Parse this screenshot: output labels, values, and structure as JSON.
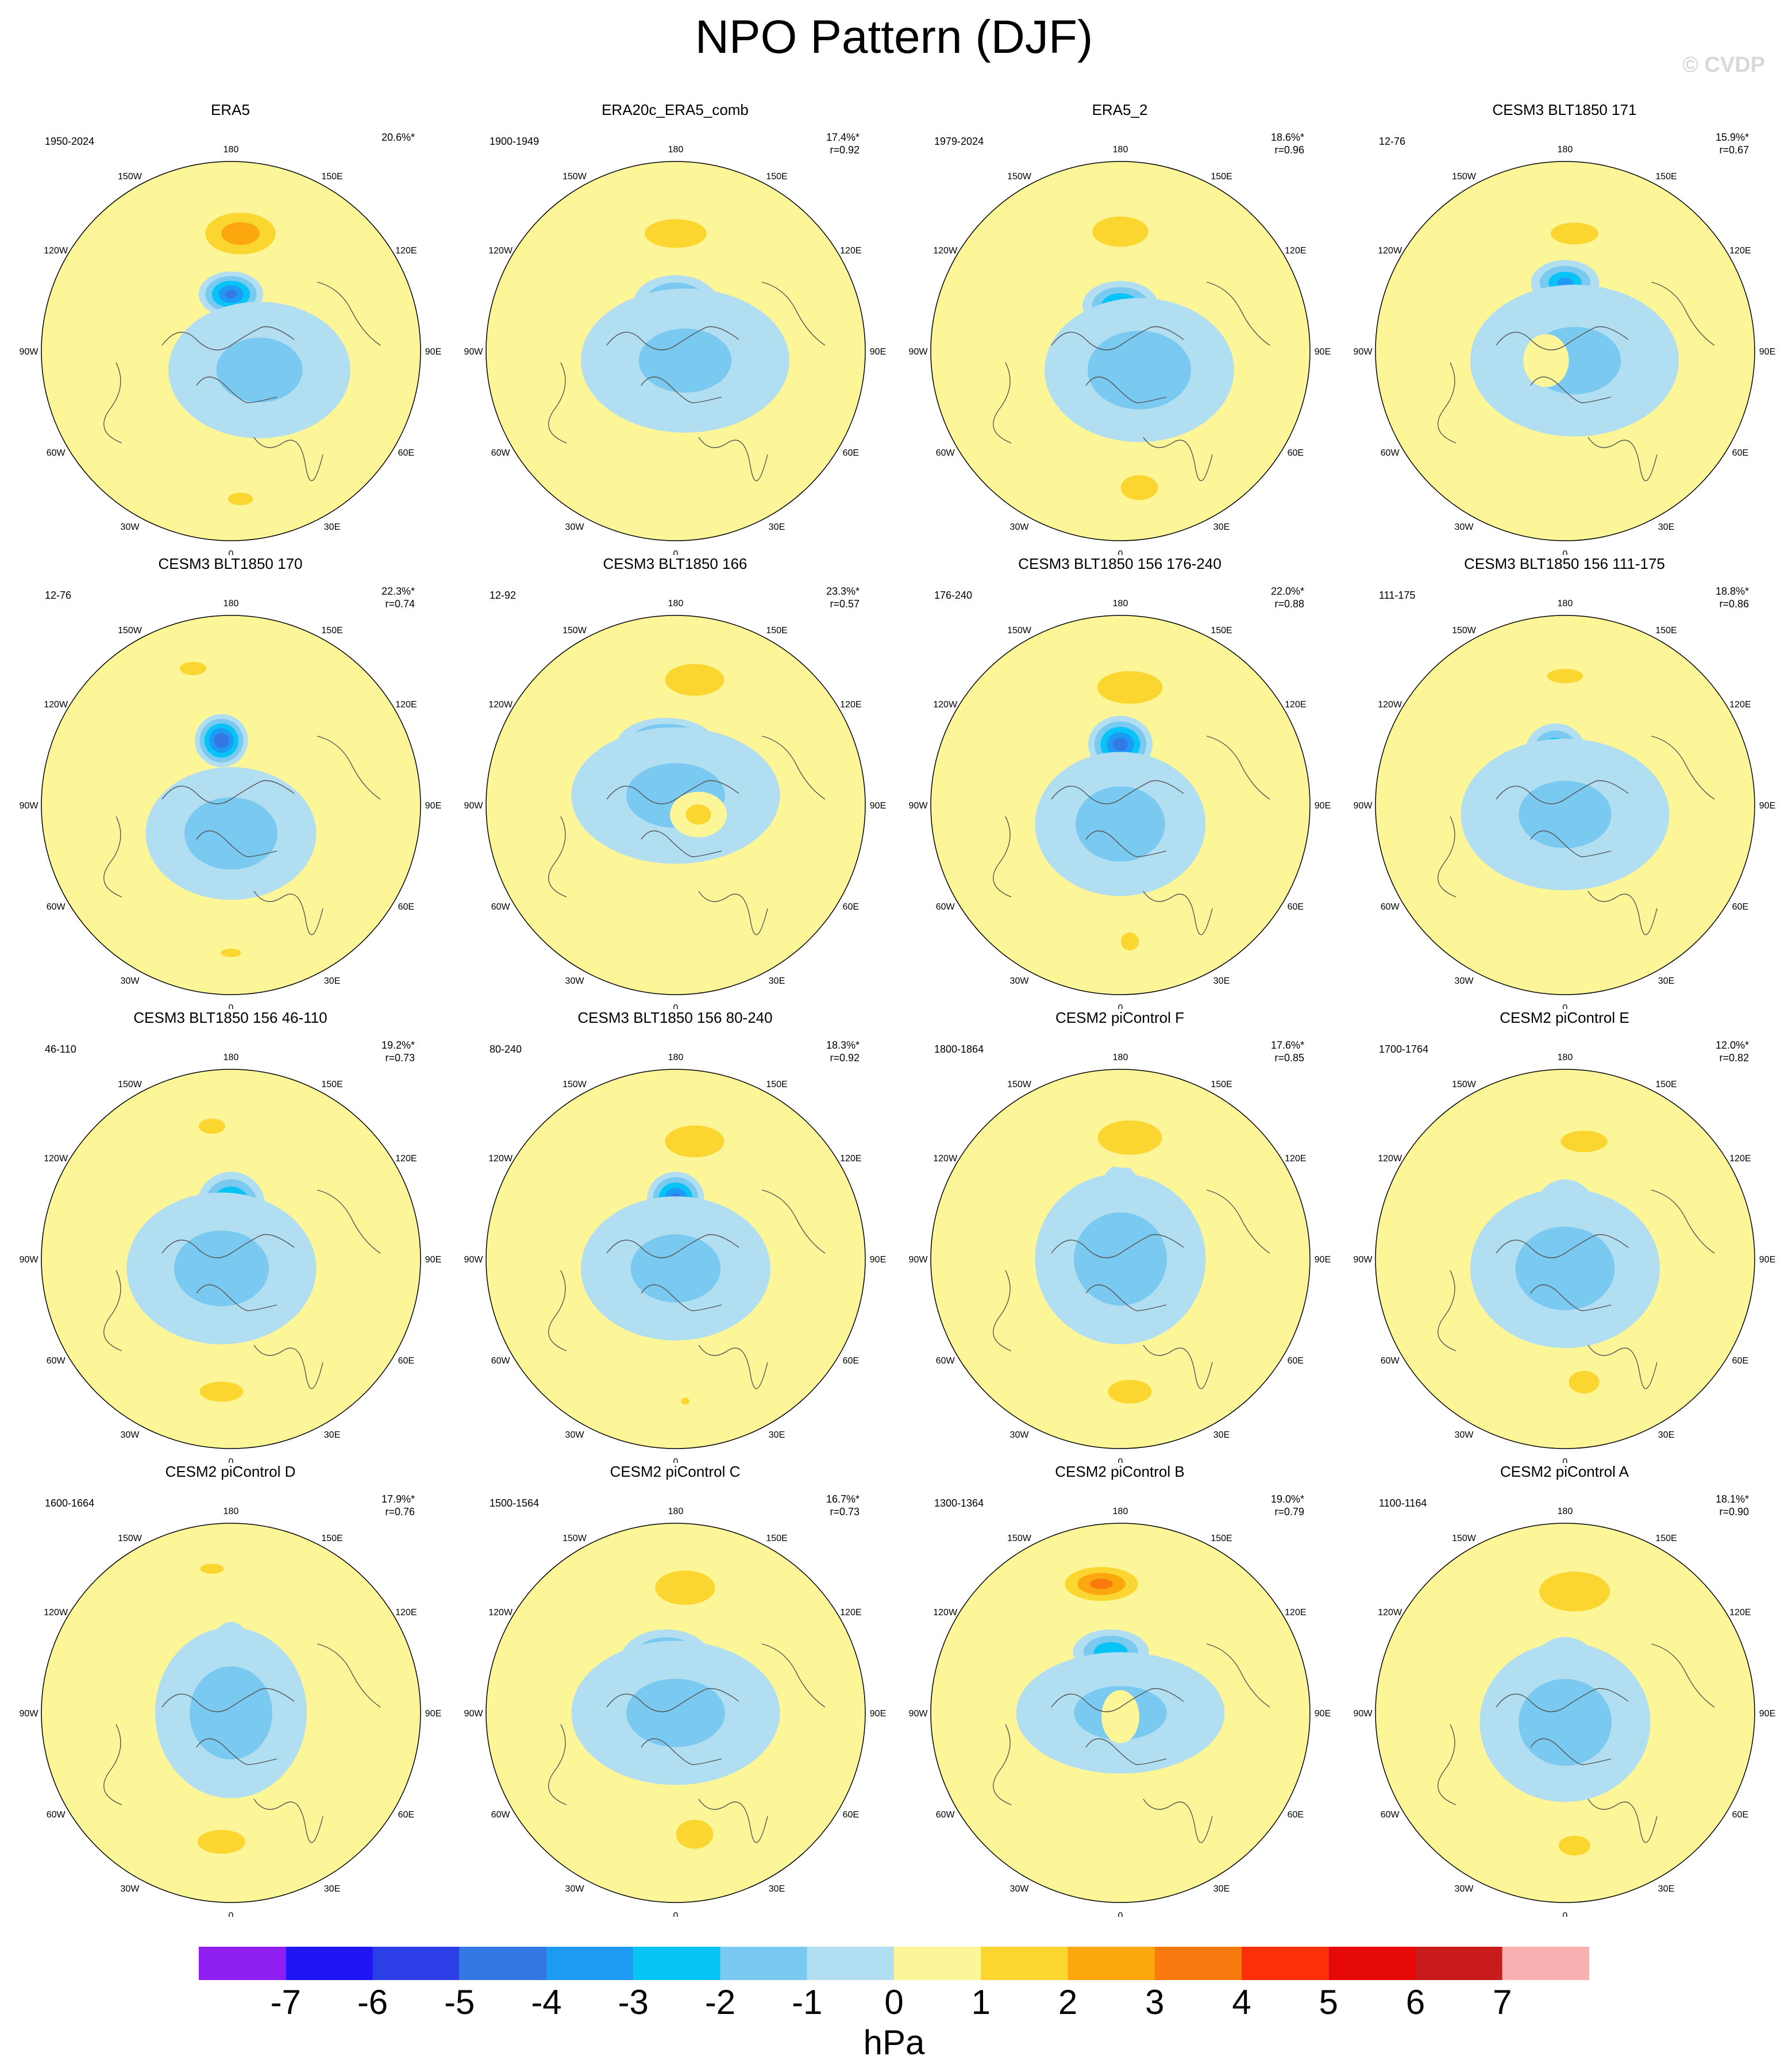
{
  "title": "NPO Pattern (DJF)",
  "watermark": "© CVDP",
  "colorbar": {
    "labels": [
      "-7",
      "-6",
      "-5",
      "-4",
      "-3",
      "-2",
      "-1",
      "0",
      "1",
      "2",
      "3",
      "4",
      "5",
      "6",
      "7"
    ],
    "colors": [
      "#8e1ff0",
      "#1e16f5",
      "#2c3fe6",
      "#3478e6",
      "#1e9af5",
      "#06c4f6",
      "#79c9f0",
      "#b2def2",
      "#fdf699",
      "#fcd630",
      "#fba70d",
      "#f97a0f",
      "#fb2f08",
      "#e70808",
      "#c91b1b",
      "#f9b0b0"
    ],
    "units": "hPa"
  },
  "lon_labels": [
    "180",
    "150E",
    "120E",
    "90E",
    "60E",
    "30E",
    "0",
    "30W",
    "60W",
    "90W",
    "120W",
    "150W"
  ],
  "chart_data": [
    {
      "type": "heatmap",
      "title": "ERA5",
      "years": "1950-2024",
      "pct": "20.6%*",
      "r": "",
      "pattern": {
        "pos": [
          [
            0.05,
            0.62,
            0.27,
            0.16,
            2.6
          ]
        ],
        "neg": [
          [
            0.0,
            0.3,
            0.17,
            0.12,
            -4.3
          ],
          [
            0.15,
            -0.1,
            0.48,
            0.36,
            -1.3
          ]
        ],
        "pos2": [
          [
            0.05,
            -0.78,
            0.14,
            0.07,
            1.3
          ]
        ]
      }
    },
    {
      "type": "heatmap",
      "title": "ERA20c_ERA5_comb",
      "years": "1900-1949",
      "pct": "17.4%*",
      "r": "r=0.92",
      "pattern": {
        "pos": [
          [
            0.0,
            0.62,
            0.28,
            0.13,
            1.8
          ]
        ],
        "neg": [
          [
            0.0,
            0.26,
            0.22,
            0.14,
            -3.0
          ],
          [
            0.05,
            -0.05,
            0.55,
            0.38,
            -1.2
          ]
        ],
        "pos2": [
          [
            0.1,
            -0.72,
            0.22,
            0.12,
            0.7
          ]
        ]
      }
    },
    {
      "type": "heatmap",
      "title": "ERA5_2",
      "years": "1979-2024",
      "pct": "18.6%*",
      "r": "r=0.96",
      "pattern": {
        "pos": [
          [
            0.0,
            0.63,
            0.24,
            0.13,
            2.0
          ]
        ],
        "neg": [
          [
            0.0,
            0.24,
            0.2,
            0.13,
            -3.4
          ],
          [
            0.1,
            -0.1,
            0.5,
            0.38,
            -1.6
          ]
        ],
        "pos2": [
          [
            0.1,
            -0.72,
            0.18,
            0.12,
            1.6
          ]
        ]
      }
    },
    {
      "type": "heatmap",
      "title": "CESM3 BLT1850 171",
      "years": "12-76",
      "pct": "15.9%*",
      "r": "r=0.67",
      "pattern": {
        "pos": [
          [
            0.05,
            0.62,
            0.24,
            0.11,
            1.5
          ]
        ],
        "neg": [
          [
            0.0,
            0.36,
            0.18,
            0.12,
            -3.3
          ],
          [
            0.05,
            -0.05,
            0.55,
            0.4,
            -1.2
          ]
        ],
        "pos2": [
          [
            -0.1,
            -0.05,
            0.12,
            0.14,
            0.5
          ]
        ]
      }
    },
    {
      "type": "heatmap",
      "title": "CESM3 BLT1850 170",
      "years": "12-76",
      "pct": "22.3%*",
      "r": "r=0.74",
      "pattern": {
        "pos": [
          [
            -0.2,
            0.72,
            0.14,
            0.07,
            1.4
          ]
        ],
        "neg": [
          [
            -0.05,
            0.34,
            0.14,
            0.14,
            -5.0
          ],
          [
            0.0,
            -0.15,
            0.45,
            0.35,
            -1.6
          ]
        ],
        "pos2": [
          [
            0.0,
            -0.78,
            0.12,
            0.05,
            1.2
          ]
        ]
      }
    },
    {
      "type": "heatmap",
      "title": "CESM3 BLT1850 166",
      "years": "12-92",
      "pct": "23.3%*",
      "r": "r=0.57",
      "pattern": {
        "pos": [
          [
            0.1,
            0.66,
            0.26,
            0.14,
            1.9
          ]
        ],
        "neg": [
          [
            -0.05,
            0.32,
            0.26,
            0.14,
            -3.8
          ],
          [
            0.0,
            0.05,
            0.55,
            0.36,
            -1.3
          ]
        ],
        "pos2": [
          [
            0.12,
            -0.05,
            0.15,
            0.12,
            1.2
          ]
        ]
      }
    },
    {
      "type": "heatmap",
      "title": "CESM3 BLT1850 156 176-240",
      "years": "176-240",
      "pct": "22.0%*",
      "r": "r=0.88",
      "pattern": {
        "pos": [
          [
            0.05,
            0.62,
            0.28,
            0.14,
            2.0
          ]
        ],
        "neg": [
          [
            0.0,
            0.32,
            0.17,
            0.15,
            -4.6
          ],
          [
            0.0,
            -0.1,
            0.45,
            0.38,
            -1.5
          ]
        ],
        "pos2": [
          [
            0.05,
            -0.72,
            0.1,
            0.1,
            1.3
          ]
        ]
      }
    },
    {
      "type": "heatmap",
      "title": "CESM3 BLT1850 156 111-175",
      "years": "111-175",
      "pct": "18.8%*",
      "r": "r=0.86",
      "pattern": {
        "pos": [
          [
            0.0,
            0.68,
            0.2,
            0.08,
            1.3
          ]
        ],
        "neg": [
          [
            -0.05,
            0.28,
            0.16,
            0.15,
            -3.4
          ],
          [
            0.0,
            -0.05,
            0.55,
            0.4,
            -1.2
          ]
        ],
        "pos2": [
          [
            0.0,
            -0.78,
            0.1,
            0.05,
            0.4
          ]
        ]
      }
    },
    {
      "type": "heatmap",
      "title": "CESM3 BLT1850 156 46-110",
      "years": "46-110",
      "pct": "19.2%*",
      "r": "r=0.73",
      "pattern": {
        "pos": [
          [
            -0.1,
            0.7,
            0.14,
            0.08,
            1.4
          ]
        ],
        "neg": [
          [
            0.0,
            0.28,
            0.18,
            0.18,
            -4.0
          ],
          [
            -0.05,
            -0.05,
            0.5,
            0.4,
            -1.4
          ]
        ],
        "pos2": [
          [
            -0.05,
            -0.7,
            0.22,
            0.1,
            1.5
          ]
        ]
      }
    },
    {
      "type": "heatmap",
      "title": "CESM3 BLT1850 156 80-240",
      "years": "80-240",
      "pct": "18.3%*",
      "r": "r=0.92",
      "pattern": {
        "pos": [
          [
            0.1,
            0.62,
            0.26,
            0.14,
            1.9
          ]
        ],
        "neg": [
          [
            0.0,
            0.32,
            0.15,
            0.14,
            -4.3
          ],
          [
            0.0,
            -0.05,
            0.5,
            0.38,
            -1.3
          ]
        ],
        "pos2": [
          [
            0.05,
            -0.75,
            0.05,
            0.04,
            1.2
          ]
        ]
      }
    },
    {
      "type": "heatmap",
      "title": "CESM2 piControl F",
      "years": "1800-1864",
      "pct": "17.6%*",
      "r": "r=0.85",
      "pattern": {
        "pos": [
          [
            0.05,
            0.64,
            0.3,
            0.16,
            1.7
          ]
        ],
        "neg": [
          [
            0.0,
            0.1,
            0.16,
            0.4,
            -3.4
          ],
          [
            0.0,
            0.0,
            0.45,
            0.45,
            -1.6
          ]
        ],
        "pos2": [
          [
            0.05,
            -0.7,
            0.22,
            0.12,
            1.5
          ]
        ]
      }
    },
    {
      "type": "heatmap",
      "title": "CESM2 piControl E",
      "years": "1700-1764",
      "pct": "12.0%*",
      "r": "r=0.82",
      "pattern": {
        "pos": [
          [
            0.1,
            0.62,
            0.26,
            0.12,
            1.3
          ]
        ],
        "neg": [
          [
            0.0,
            0.2,
            0.18,
            0.22,
            -3.3
          ],
          [
            0.0,
            -0.05,
            0.5,
            0.42,
            -1.5
          ]
        ],
        "pos2": [
          [
            0.1,
            -0.65,
            0.16,
            0.12,
            1.4
          ]
        ]
      }
    },
    {
      "type": "heatmap",
      "title": "CESM2 piControl D",
      "years": "1600-1664",
      "pct": "17.9%*",
      "r": "r=0.76",
      "pattern": {
        "pos": [
          [
            -0.1,
            0.76,
            0.14,
            0.06,
            1.2
          ]
        ],
        "neg": [
          [
            0.0,
            0.12,
            0.16,
            0.36,
            -3.5
          ],
          [
            0.0,
            0.0,
            0.4,
            0.45,
            -1.6
          ]
        ],
        "pos2": [
          [
            -0.05,
            -0.68,
            0.24,
            0.12,
            1.5
          ]
        ]
      }
    },
    {
      "type": "heatmap",
      "title": "CESM2 piControl C",
      "years": "1500-1564",
      "pct": "16.7%*",
      "r": "r=0.73",
      "pattern": {
        "pos": [
          [
            0.05,
            0.66,
            0.28,
            0.16,
            1.7
          ]
        ],
        "neg": [
          [
            -0.05,
            0.28,
            0.24,
            0.16,
            -3.3
          ],
          [
            0.0,
            0.0,
            0.55,
            0.38,
            -1.3
          ]
        ],
        "pos2": [
          [
            0.1,
            -0.64,
            0.18,
            0.14,
            1.6
          ]
        ]
      }
    },
    {
      "type": "heatmap",
      "title": "CESM2 piControl B",
      "years": "1300-1364",
      "pct": "19.0%*",
      "r": "r=0.79",
      "pattern": {
        "pos": [
          [
            -0.1,
            0.68,
            0.26,
            0.12,
            3.3
          ]
        ],
        "neg": [
          [
            -0.05,
            0.32,
            0.2,
            0.12,
            -3.0
          ],
          [
            0.0,
            0.0,
            0.55,
            0.32,
            -1.2
          ]
        ],
        "pos2": [
          [
            0.0,
            -0.02,
            0.1,
            0.14,
            0.6
          ]
        ]
      }
    },
    {
      "type": "heatmap",
      "title": "CESM2 piControl A",
      "years": "1100-1164",
      "pct": "18.1%*",
      "r": "r=0.90",
      "pattern": {
        "pos": [
          [
            0.05,
            0.64,
            0.32,
            0.18,
            1.8
          ]
        ],
        "neg": [
          [
            0.0,
            0.22,
            0.18,
            0.18,
            -4.0
          ],
          [
            0.0,
            -0.05,
            0.45,
            0.42,
            -1.6
          ]
        ],
        "pos2": [
          [
            0.05,
            -0.7,
            0.16,
            0.1,
            1.5
          ]
        ]
      }
    }
  ]
}
